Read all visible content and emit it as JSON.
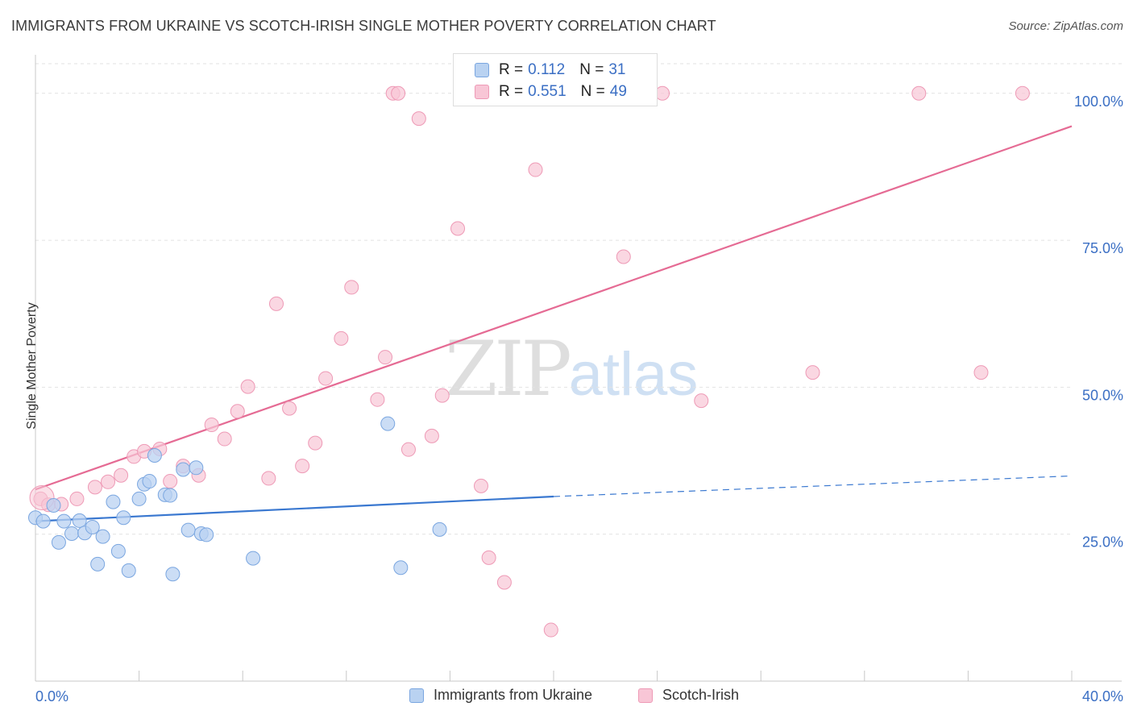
{
  "header": {
    "title": "IMMIGRANTS FROM UKRAINE VS SCOTCH-IRISH SINGLE MOTHER POVERTY CORRELATION CHART",
    "source": "Source: ZipAtlas.com"
  },
  "watermark": {
    "zip": "ZIP",
    "atlas": "atlas"
  },
  "legend": {
    "rows": [
      {
        "r_label": "R = ",
        "r_value": "0.112",
        "n_label": "N = ",
        "n_value": "31"
      },
      {
        "r_label": "R = ",
        "r_value": "0.551",
        "n_label": "N = ",
        "n_value": "49"
      }
    ]
  },
  "colors": {
    "blue_fill": "#b9d2f1",
    "blue_stroke": "#7aa6e0",
    "blue_line": "#3a78d0",
    "pink_fill": "#f8c6d6",
    "pink_stroke": "#ee9ab6",
    "pink_line": "#e56b94",
    "tick_label": "#3b6fc4"
  },
  "chart_data": {
    "type": "scatter",
    "title": "IMMIGRANTS FROM UKRAINE VS SCOTCH-IRISH SINGLE MOTHER POVERTY CORRELATION CHART",
    "xlabel": "",
    "ylabel": "Single Mother Poverty",
    "xlim": [
      0,
      40
    ],
    "ylim": [
      0,
      106
    ],
    "x_tick_labels": [
      "0.0%",
      "40.0%"
    ],
    "y_ticks": [
      25,
      50,
      75,
      100
    ],
    "y_tick_labels": [
      "25.0%",
      "50.0%",
      "75.0%",
      "100.0%"
    ],
    "grid": true,
    "legend_position": "top-center",
    "series": [
      {
        "name": "Immigrants from Ukraine",
        "color": "#b9d2f1",
        "trend": {
          "x": [
            0,
            20
          ],
          "y": [
            27.2,
            31.4
          ],
          "dashed_to": [
            40,
            34.9
          ]
        },
        "points": [
          [
            0.0,
            27.8
          ],
          [
            0.3,
            27.2
          ],
          [
            0.7,
            29.9
          ],
          [
            0.9,
            23.6
          ],
          [
            1.1,
            27.2
          ],
          [
            1.4,
            25.1
          ],
          [
            1.7,
            27.3
          ],
          [
            1.9,
            25.2
          ],
          [
            2.2,
            26.2
          ],
          [
            2.4,
            19.9
          ],
          [
            2.6,
            24.6
          ],
          [
            3.0,
            30.5
          ],
          [
            3.2,
            22.1
          ],
          [
            3.4,
            27.8
          ],
          [
            3.6,
            18.8
          ],
          [
            4.0,
            31.0
          ],
          [
            4.2,
            33.5
          ],
          [
            4.4,
            34.0
          ],
          [
            4.6,
            38.4
          ],
          [
            5.0,
            31.7
          ],
          [
            5.2,
            31.6
          ],
          [
            5.3,
            18.2
          ],
          [
            5.7,
            36.0
          ],
          [
            5.9,
            25.7
          ],
          [
            6.2,
            36.3
          ],
          [
            6.4,
            25.1
          ],
          [
            6.6,
            24.9
          ],
          [
            8.4,
            20.9
          ],
          [
            13.6,
            43.8
          ],
          [
            14.1,
            19.3
          ],
          [
            15.6,
            25.8
          ]
        ]
      },
      {
        "name": "Scotch-Irish",
        "color": "#f8c6d6",
        "trend": {
          "x": [
            0,
            40
          ],
          "y": [
            32.6,
            94.4
          ]
        },
        "points": [
          [
            0.2,
            31.0
          ],
          [
            0.5,
            30.0
          ],
          [
            1.0,
            30.1
          ],
          [
            1.6,
            31.0
          ],
          [
            2.3,
            33.0
          ],
          [
            2.8,
            33.9
          ],
          [
            3.3,
            35.0
          ],
          [
            3.8,
            38.2
          ],
          [
            4.2,
            39.1
          ],
          [
            4.8,
            39.5
          ],
          [
            5.2,
            34.0
          ],
          [
            5.7,
            36.6
          ],
          [
            6.3,
            35.0
          ],
          [
            6.8,
            43.6
          ],
          [
            7.3,
            41.2
          ],
          [
            7.8,
            45.9
          ],
          [
            8.2,
            50.1
          ],
          [
            9.0,
            34.5
          ],
          [
            9.3,
            64.2
          ],
          [
            9.8,
            46.4
          ],
          [
            10.3,
            36.6
          ],
          [
            10.8,
            40.5
          ],
          [
            11.2,
            51.5
          ],
          [
            11.8,
            58.3
          ],
          [
            12.2,
            67.0
          ],
          [
            13.2,
            47.9
          ],
          [
            13.5,
            55.1
          ],
          [
            13.8,
            100.0
          ],
          [
            14.4,
            39.4
          ],
          [
            14.8,
            95.7
          ],
          [
            15.3,
            41.7
          ],
          [
            15.7,
            48.6
          ],
          [
            16.3,
            77.0
          ],
          [
            17.2,
            33.2
          ],
          [
            17.5,
            21.0
          ],
          [
            18.1,
            16.8
          ],
          [
            18.6,
            100.0
          ],
          [
            19.3,
            87.0
          ],
          [
            19.9,
            8.7
          ],
          [
            21.5,
            100.0
          ],
          [
            22.7,
            72.2
          ],
          [
            24.2,
            100.0
          ],
          [
            25.7,
            47.7
          ],
          [
            30.0,
            52.5
          ],
          [
            34.1,
            100.0
          ],
          [
            36.5,
            52.5
          ],
          [
            38.1,
            100.0
          ],
          [
            21.8,
            100.0
          ],
          [
            14.0,
            100.0
          ]
        ]
      }
    ]
  }
}
